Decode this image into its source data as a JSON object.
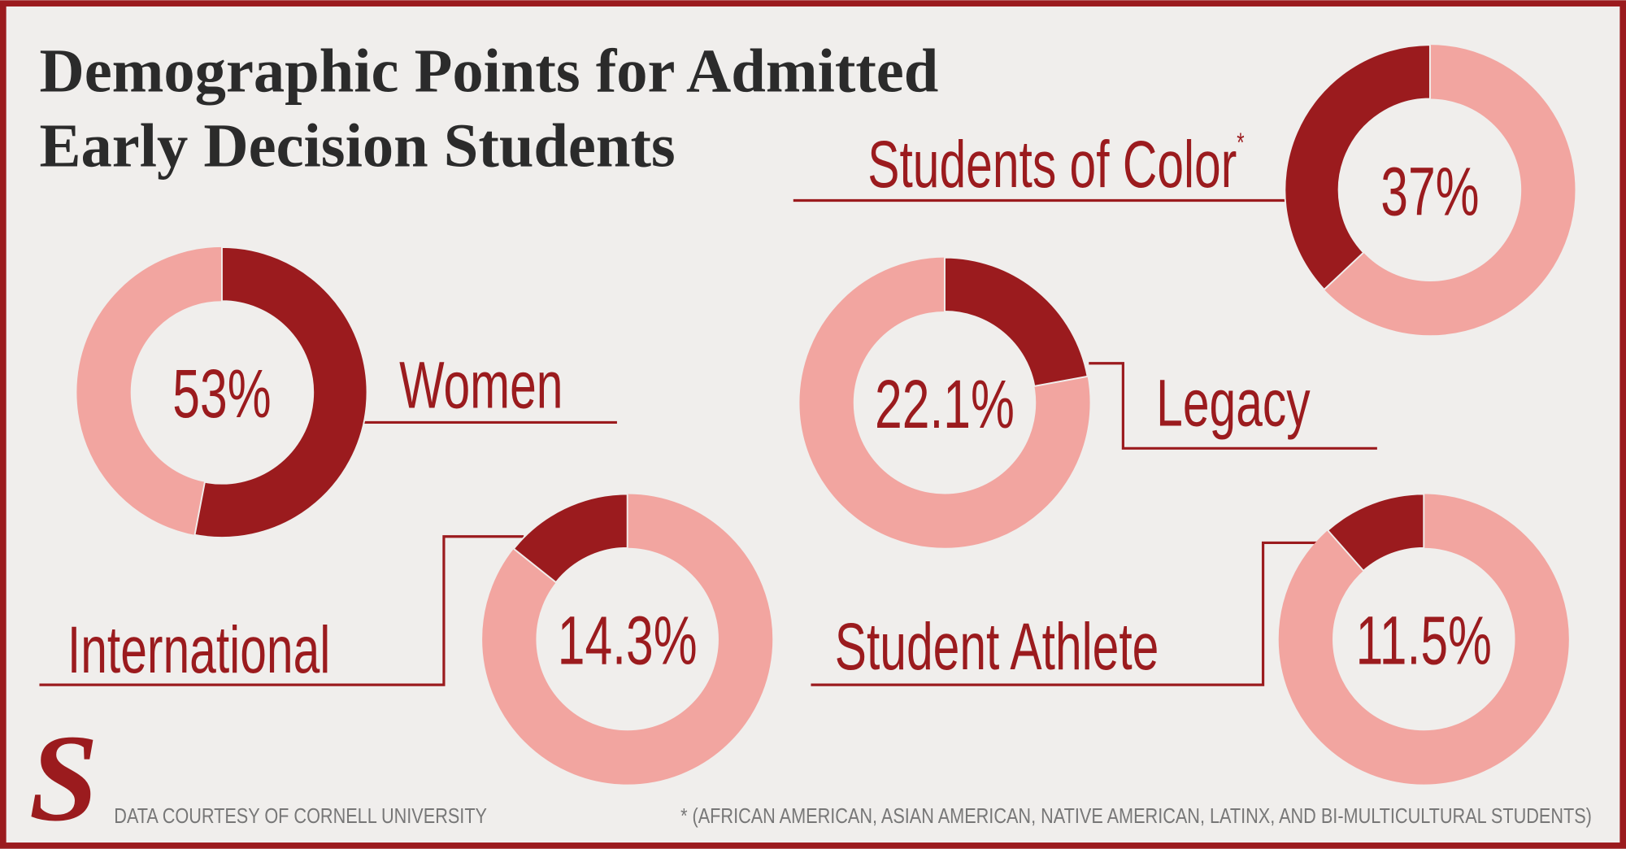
{
  "title": [
    "Demographic Points for Admitted",
    "Early Decision Students"
  ],
  "logo": "S",
  "source": "DATA COURTESY OF CORNELL UNIVERSITY",
  "footnote": "* (AFRICAN AMERICAN, ASIAN AMERICAN, NATIVE AMERICAN, LATINX, AND BI-MULTICULTURAL STUDENTS)",
  "chart_data": [
    {
      "type": "donut",
      "categories": [
        "Students of Color"
      ],
      "note_mark": "*",
      "values": [
        37
      ],
      "value_labels": [
        "37%"
      ],
      "color": "#9b1b1e",
      "track_color": "#f2a5a0",
      "direction": "counterclockwise"
    },
    {
      "type": "donut",
      "categories": [
        "Women"
      ],
      "values": [
        53
      ],
      "value_labels": [
        "53%"
      ],
      "color": "#9b1b1e",
      "track_color": "#f2a5a0",
      "direction": "clockwise"
    },
    {
      "type": "donut",
      "categories": [
        "Legacy"
      ],
      "values": [
        22.1
      ],
      "value_labels": [
        "22.1%"
      ],
      "color": "#9b1b1e",
      "track_color": "#f2a5a0",
      "direction": "clockwise"
    },
    {
      "type": "donut",
      "categories": [
        "International"
      ],
      "values": [
        14.3
      ],
      "value_labels": [
        "14.3%"
      ],
      "color": "#9b1b1e",
      "track_color": "#f2a5a0",
      "direction": "counterclockwise"
    },
    {
      "type": "donut",
      "categories": [
        "Student Athlete"
      ],
      "values": [
        11.5
      ],
      "value_labels": [
        "11.5%"
      ],
      "color": "#9b1b1e",
      "track_color": "#f2a5a0",
      "direction": "counterclockwise"
    }
  ]
}
